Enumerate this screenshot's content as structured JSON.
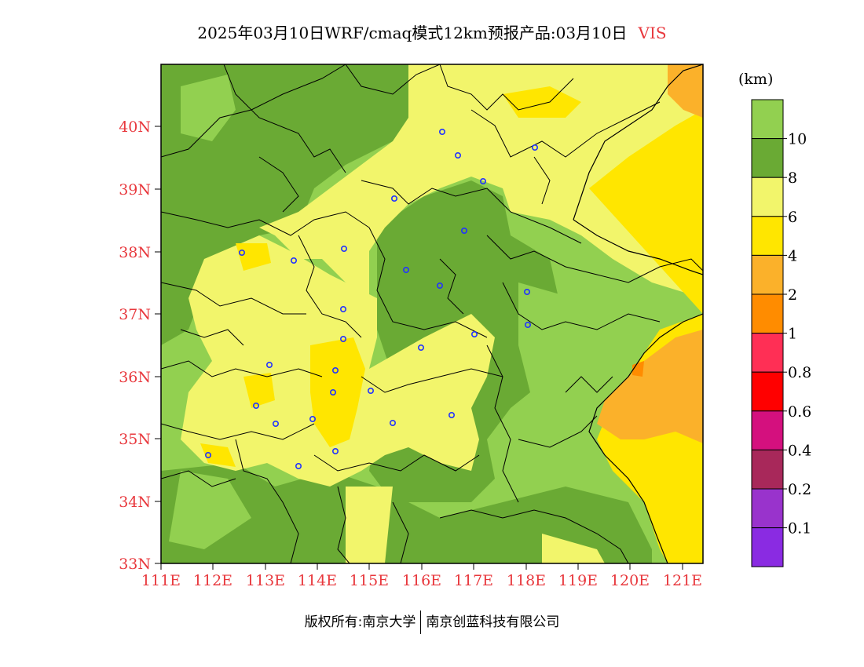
{
  "title": {
    "main": "2025年03月10日WRF/cmaq模式12km预报产品:03月10日",
    "variable": "VIS"
  },
  "colorbar": {
    "unit": "(km)",
    "bins": [
      {
        "color": "#92d050"
      },
      {
        "color": "#6aaa34"
      },
      {
        "color": "#f2f56b"
      },
      {
        "color": "#ffe600"
      },
      {
        "color": "#fbb12a"
      },
      {
        "color": "#ff8c00"
      },
      {
        "color": "#ff2f55"
      },
      {
        "color": "#ff0000"
      },
      {
        "color": "#d4107e"
      },
      {
        "color": "#a8285a"
      },
      {
        "color": "#9933cc"
      },
      {
        "color": "#8a2be2"
      }
    ],
    "labels": [
      "10",
      "8",
      "6",
      "4",
      "2",
      "1",
      "0.8",
      "0.6",
      "0.4",
      "0.2",
      "0.1"
    ]
  },
  "axes": {
    "lat_labels": [
      "40N",
      "39N",
      "38N",
      "37N",
      "36N",
      "35N",
      "34N",
      "33N"
    ],
    "lon_labels": [
      "111E",
      "112E",
      "113E",
      "114E",
      "115E",
      "116E",
      "117E",
      "118E",
      "119E",
      "120E",
      "121E"
    ]
  },
  "footer": {
    "left": "版权所有:南京大学",
    "right": "南京创蓝科技有限公司"
  }
}
